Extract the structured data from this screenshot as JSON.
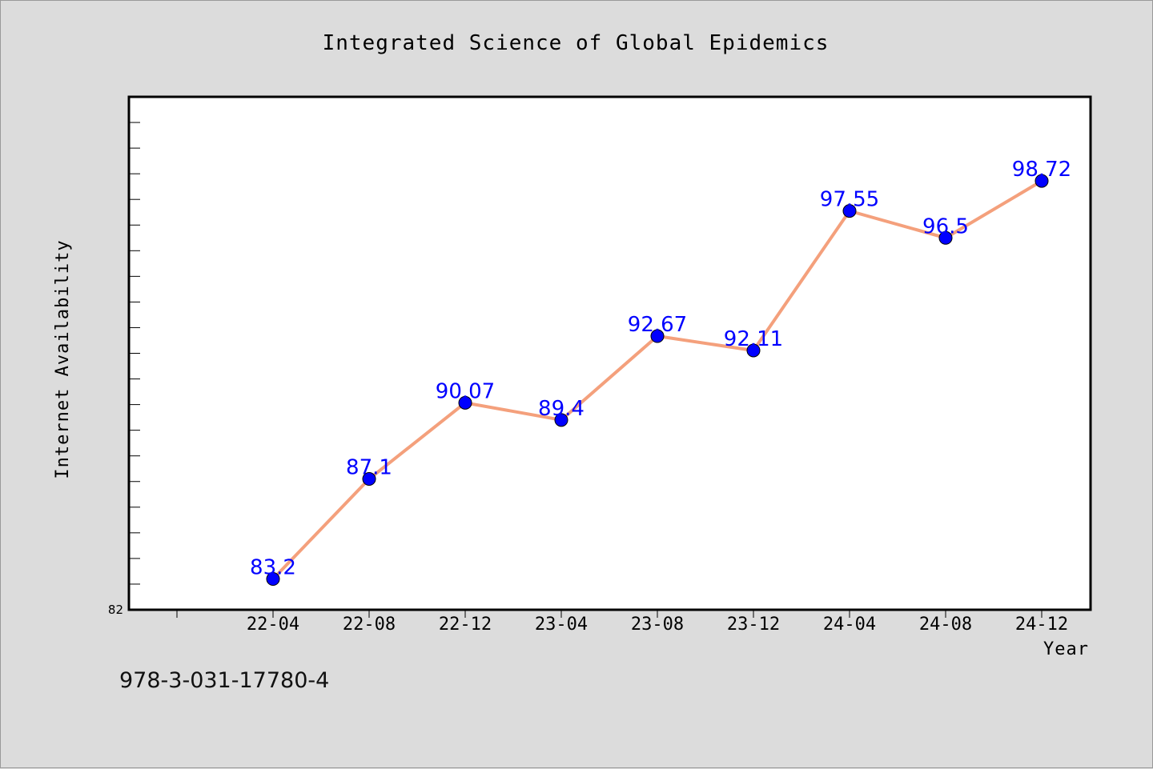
{
  "chart_data": {
    "type": "line",
    "title": "Integrated Science of Global Epidemics",
    "xlabel": "Year",
    "ylabel": "Internet Availability",
    "categories": [
      "22-04",
      "22-08",
      "22-12",
      "23-04",
      "23-08",
      "23-12",
      "24-04",
      "24-08",
      "24-12"
    ],
    "series": [
      {
        "values": [
          83.2,
          87.1,
          90.07,
          89.4,
          92.67,
          92.11,
          97.55,
          96.5,
          98.72
        ]
      }
    ],
    "data_labels": [
      "83.2",
      "87.1",
      "90.07",
      "89.4",
      "92.67",
      "92.11",
      "97.55",
      "96.5",
      "98.72"
    ],
    "ylim": [
      82,
      102
    ],
    "y_min_label": "82",
    "grid": false,
    "legend": "none",
    "colors": {
      "line": "#f4a07c",
      "marker": "#0000ff",
      "label": "#0000ff",
      "background": "#dcdcdc",
      "plot_background": "#ffffff"
    }
  },
  "footer": {
    "code": "978-3-031-17780-4"
  }
}
